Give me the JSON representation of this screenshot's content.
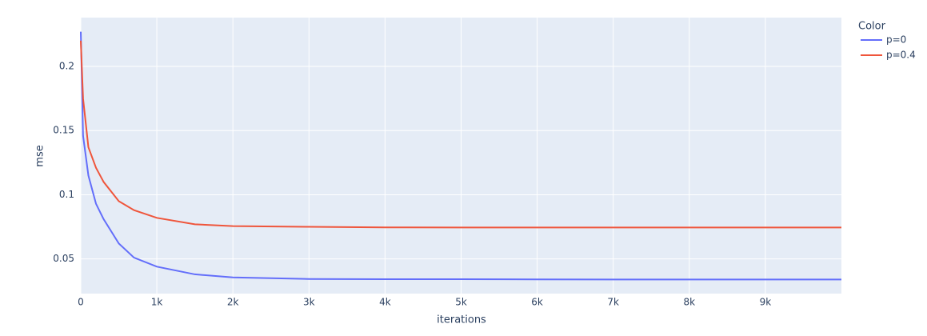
{
  "chart_data": {
    "type": "line",
    "x_label": "iterations",
    "y_label": "mse",
    "legend_title": "Color",
    "x": [
      0,
      30,
      100,
      200,
      300,
      500,
      700,
      1000,
      1500,
      2000,
      3000,
      4000,
      5000,
      6000,
      7000,
      8000,
      9000,
      10000
    ],
    "series": [
      {
        "name": "p=0",
        "color": "#636efa",
        "values": [
          0.227,
          0.146,
          0.115,
          0.093,
          0.081,
          0.062,
          0.051,
          0.044,
          0.038,
          0.0356,
          0.0344,
          0.0342,
          0.0342,
          0.0341,
          0.034,
          0.034,
          0.034,
          0.034
        ]
      },
      {
        "name": "p=0.4",
        "color": "#ef553b",
        "values": [
          0.22,
          0.175,
          0.137,
          0.121,
          0.11,
          0.095,
          0.088,
          0.082,
          0.077,
          0.0756,
          0.075,
          0.0746,
          0.0745,
          0.0745,
          0.0745,
          0.0745,
          0.0745,
          0.0745
        ]
      }
    ],
    "xlim": [
      0,
      10000
    ],
    "ylim": [
      0.023,
      0.238
    ],
    "xticks": [
      0,
      {
        "value": 1000,
        "label": "1k"
      },
      {
        "value": 2000,
        "label": "2k"
      },
      {
        "value": 3000,
        "label": "3k"
      },
      {
        "value": 4000,
        "label": "4k"
      },
      {
        "value": 5000,
        "label": "5k"
      },
      {
        "value": 6000,
        "label": "6k"
      },
      {
        "value": 7000,
        "label": "7k"
      },
      {
        "value": 8000,
        "label": "8k"
      },
      {
        "value": 9000,
        "label": "9k"
      }
    ],
    "yticks": [
      0.05,
      0.1,
      0.15,
      0.2
    ],
    "grid": true
  }
}
